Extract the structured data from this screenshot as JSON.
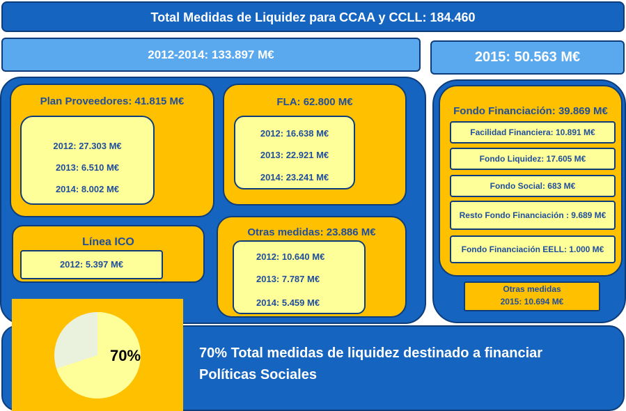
{
  "header": {
    "title": "Total Medidas de Liquidez para CCAA  y CCLL: 184.460"
  },
  "period_2012_2014": {
    "label": "2012-2014:  133.897 M€"
  },
  "period_2015": {
    "label": "2015: 50.563 M€"
  },
  "plan_proveedores": {
    "title": "Plan Proveedores: 41.815 M€",
    "items": [
      "2012: 27.303 M€",
      "2013: 6.510 M€",
      "2014: 8.002 M€"
    ]
  },
  "fla": {
    "title": "FLA: 62.800 M€",
    "items": [
      "2012: 16.638 M€",
      "2013: 22.921 M€",
      "2014: 23.241 M€"
    ]
  },
  "linea_ico": {
    "title": "Línea ICO",
    "items": [
      "2012: 5.397 M€"
    ]
  },
  "otras_medidas": {
    "title": "Otras medidas: 23.886 M€",
    "items": [
      "2012: 10.640 M€",
      "2013: 7.787 M€",
      "2014: 5.459 M€"
    ]
  },
  "fondo_financiacion": {
    "title": "Fondo Financiación: 39.869 M€",
    "items": [
      "Facilidad Financiera: 10.891 M€",
      "Fondo Liquidez: 17.605 M€",
      "Fondo Social: 683 M€",
      "Resto Fondo Financiación : 9.689 M€",
      "Fondo Financiación EELL: 1.000 M€"
    ]
  },
  "otras_medidas_2015": {
    "line1": "Otras medidas",
    "line2": "2015: 10.694 M€"
  },
  "footer": {
    "pie_label": "70%",
    "pie_share": 0.7,
    "text_line1": "70% Total medidas de liquidez destinado a financiar",
    "text_line2": "Políticas Sociales"
  },
  "colors": {
    "blue": "#1565c0",
    "light_blue": "#5aa8ee",
    "orange": "#ffc000",
    "pale_yellow": "#ffff99",
    "pie_rest": "#eaf1dd"
  }
}
